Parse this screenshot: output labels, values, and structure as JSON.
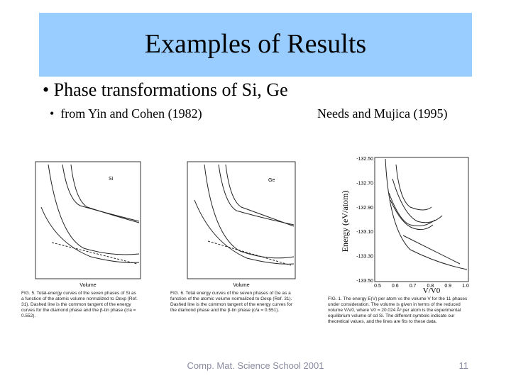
{
  "slide": {
    "title": "Examples of Results",
    "bullet": "Phase transformations of Si, Ge",
    "sub_left": "from Yin and Cohen (1982)",
    "sub_right": "Needs and Mujica (1995)",
    "footer": "Comp. Mat. Science School 2001",
    "page": "11"
  },
  "figures": [
    {
      "label": "Si",
      "xlabel": "Volume",
      "caption": "FIG. 5. Total-energy curves of the seven phases of Si as a function of the atomic volume normalized to Ωexp (Ref. 31). Dashed line is the common tangent of the energy curves for the diamond phase and the β-tin phase (c/a = 0.552)."
    },
    {
      "label": "Ge",
      "xlabel": "Volume",
      "caption": "FIG. 6. Total energy curves of the seven phases of Ge as a function of the atomic volume normalized to Ωexp (Ref. 31). Dashed line is the common tangent of the energy curves for the diamond phase and the β-tin phase (c/a = 0.551)."
    },
    {
      "ylabel": "Energy (eV/atom)",
      "xlabel": "V/V0",
      "yticks": [
        "-132.50",
        "-132.70",
        "-132.90",
        "-133.10",
        "-133.30",
        "-133.50"
      ],
      "xticks": [
        "0.5",
        "0.6",
        "0.7",
        "0.8",
        "0.9",
        "1.0"
      ],
      "caption": "FIG. 1. The energy E(V) per atom vs the volume V for the 11 phases under consideration. The volume is given in terms of the reduced volume V/V0, where V0 = 20.024 Å³ per atom is the experimental equilibrium volume of cd Si. The different symbols indicate our theoretical values, and the lines are fits to these data."
    }
  ]
}
